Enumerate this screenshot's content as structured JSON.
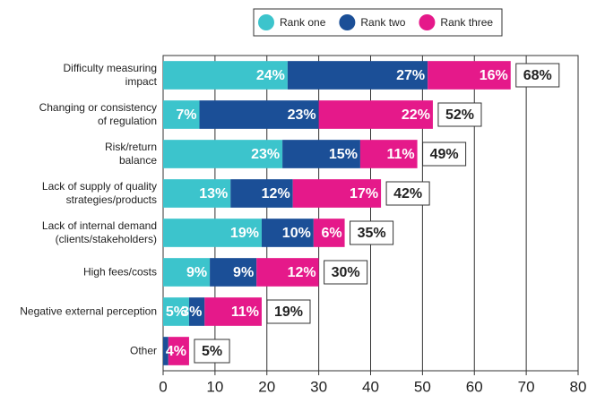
{
  "chart_data": {
    "type": "stacked-bar-horizontal",
    "categories": [
      "Difficulty measuring\nimpact",
      "Changing or consistency\nof regulation",
      "Risk/return\nbalance",
      "Lack of supply of quality\nstrategies/products",
      "Lack of internal demand\n(clients/stakeholders)",
      "High fees/costs",
      "Negative external perception",
      "Other"
    ],
    "series": [
      {
        "name": "Rank one",
        "color": "#3cc4cc",
        "values": [
          24,
          7,
          23,
          13,
          19,
          9,
          5,
          0
        ],
        "value_labels": [
          "24%",
          "7%",
          "23%",
          "13%",
          "19%",
          "9%",
          "5%",
          null
        ]
      },
      {
        "name": "Rank two",
        "color": "#1b4f97",
        "values": [
          27,
          23,
          15,
          12,
          10,
          9,
          3,
          1
        ],
        "value_labels": [
          "27%",
          "23%",
          "15%",
          "12%",
          "10%",
          "9%",
          "3%",
          null
        ]
      },
      {
        "name": "Rank three",
        "color": "#e5198a",
        "values": [
          16,
          22,
          11,
          17,
          6,
          12,
          11,
          4
        ],
        "value_labels": [
          "16%",
          "22%",
          "11%",
          "17%",
          "6%",
          "12%",
          "11%",
          "4%"
        ]
      }
    ],
    "totals": {
      "values": [
        68,
        52,
        49,
        42,
        35,
        30,
        19,
        5
      ],
      "value_labels": [
        "68%",
        "52%",
        "49%",
        "42%",
        "35%",
        "30%",
        "19%",
        "5%"
      ]
    },
    "xlim": [
      0,
      80
    ],
    "xticks": [
      0,
      10,
      20,
      30,
      40,
      50,
      60,
      70,
      80
    ],
    "grid": true,
    "legend": "top"
  }
}
